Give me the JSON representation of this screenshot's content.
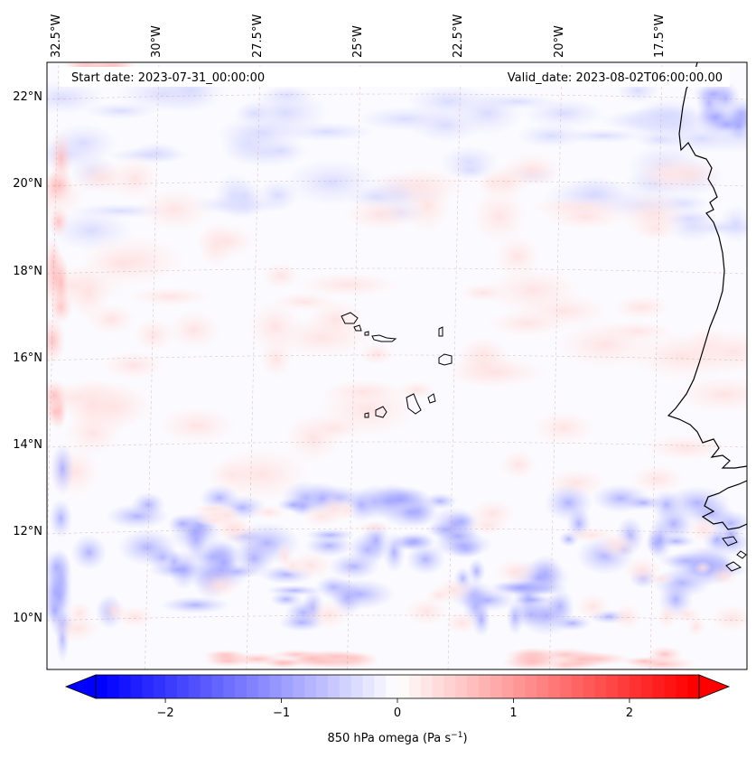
{
  "map": {
    "start_date": "Start date: 2023-07-31_00:00:00",
    "valid_date": "Valid_date: 2023-08-02T06:00:00.00",
    "lon_labels": [
      "32.5°W",
      "30°W",
      "27.5°W",
      "25°W",
      "22.5°W",
      "20°W",
      "17.5°W"
    ],
    "lat_labels": [
      "22°N",
      "20°N",
      "18°N",
      "16°N",
      "14°N",
      "12°N",
      "10°N"
    ],
    "extent": {
      "lon_min": -33.0,
      "lon_max": -15.3,
      "lat_min": 8.8,
      "lat_max": 22.8
    },
    "gridline_color": "#c8a0a0",
    "coastline_color": "#000000"
  },
  "colorbar": {
    "label_prefix": "850 hPa omega (Pa s",
    "label_exp": "−1",
    "label_suffix": ")",
    "tick_labels": [
      "−2",
      "−1",
      "0",
      "1",
      "2"
    ],
    "ticks": [
      -2,
      -1,
      0,
      1,
      2
    ],
    "vmin": -2.6,
    "vmax": 2.6,
    "cmap": "bwr",
    "extend": "both"
  }
}
